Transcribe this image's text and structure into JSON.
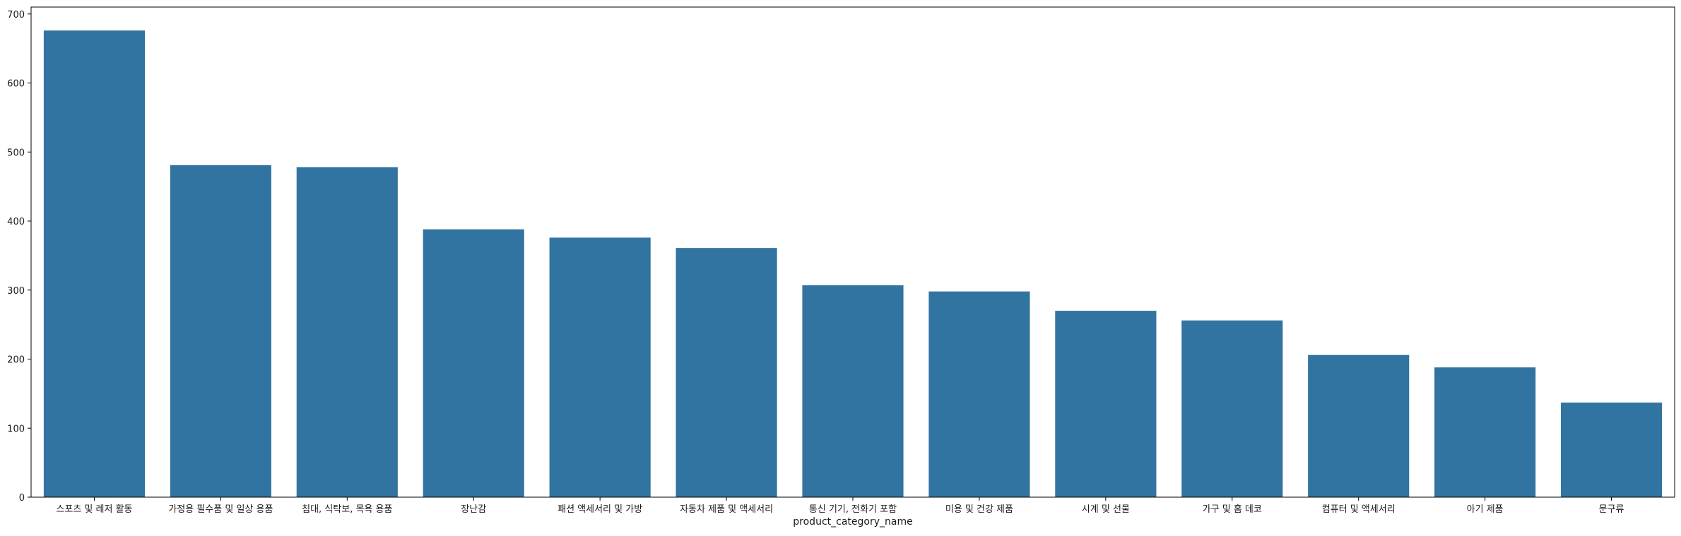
{
  "chart_data": {
    "type": "bar",
    "title": "",
    "xlabel": "product_category_name",
    "ylabel": "",
    "categories": [
      "스포츠 및 레저 활동",
      "가정용 필수품 및 일상 용품",
      "침대, 식탁보, 목욕 용품",
      "장난감",
      "패션 액세서리 및 가방",
      "자동차 제품 및 액세서리",
      "통신 기기, 전화기 포함",
      "미용 및 건강 제품",
      "시계 및 선물",
      "가구 및 홈 데코",
      "컴퓨터 및 액세서리",
      "아기 제품",
      "문구류"
    ],
    "values": [
      676,
      481,
      478,
      388,
      376,
      361,
      307,
      298,
      270,
      256,
      206,
      188,
      137
    ],
    "ylim": [
      0,
      710
    ],
    "yticks": [
      0,
      100,
      200,
      300,
      400,
      500,
      600,
      700
    ],
    "grid": false,
    "bar_color": "#3274a1"
  }
}
